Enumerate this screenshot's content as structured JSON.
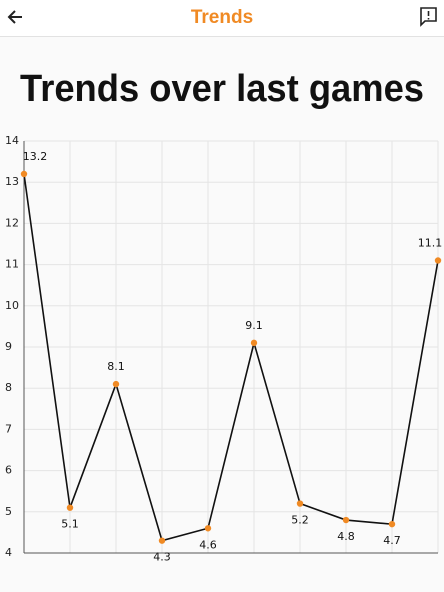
{
  "header": {
    "title": "Trends"
  },
  "heading": "Trends over last games",
  "chart_data": {
    "type": "line",
    "values": [
      13.2,
      5.1,
      8.1,
      4.3,
      4.6,
      9.1,
      5.2,
      4.8,
      4.7,
      11.1
    ],
    "line_color": "#111111",
    "marker_color": "#f08a24",
    "ylim": [
      4,
      14
    ],
    "yticks": [
      4,
      5,
      6,
      7,
      8,
      9,
      10,
      11,
      12,
      13,
      14
    ],
    "grid": true
  }
}
